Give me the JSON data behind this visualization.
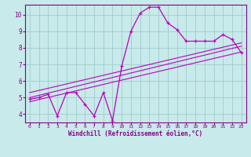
{
  "xlabel": "Windchill (Refroidissement éolien,°C)",
  "background_color": "#c8eaea",
  "grid_color": "#a0cccc",
  "line_color": "#bb00bb",
  "spine_color": "#880088",
  "xlim": [
    -0.5,
    23.5
  ],
  "ylim": [
    3.5,
    10.6
  ],
  "xticks": [
    0,
    1,
    2,
    3,
    4,
    5,
    6,
    7,
    8,
    9,
    10,
    11,
    12,
    13,
    14,
    15,
    16,
    17,
    18,
    19,
    20,
    21,
    22,
    23
  ],
  "yticks": [
    4,
    5,
    6,
    7,
    8,
    9,
    10
  ],
  "series1_x": [
    0,
    1,
    2,
    3,
    4,
    5,
    6,
    7,
    8,
    9,
    10,
    11,
    12,
    13,
    14,
    15,
    16,
    17,
    18,
    19,
    20,
    21,
    22,
    23
  ],
  "series1_y": [
    4.9,
    5.0,
    5.2,
    3.9,
    5.3,
    5.3,
    4.6,
    3.9,
    5.3,
    3.6,
    6.9,
    9.0,
    10.1,
    10.45,
    10.45,
    9.5,
    9.1,
    8.4,
    8.4,
    8.4,
    8.4,
    8.8,
    8.5,
    7.7
  ],
  "line2_x0": 0,
  "line2_x1": 23,
  "line2_y0": 5.0,
  "line2_y1": 8.1,
  "line3_x0": 0,
  "line3_x1": 23,
  "line3_y0": 5.3,
  "line3_y1": 8.3,
  "line4_x0": 0,
  "line4_x1": 23,
  "line4_y0": 4.75,
  "line4_y1": 7.75
}
